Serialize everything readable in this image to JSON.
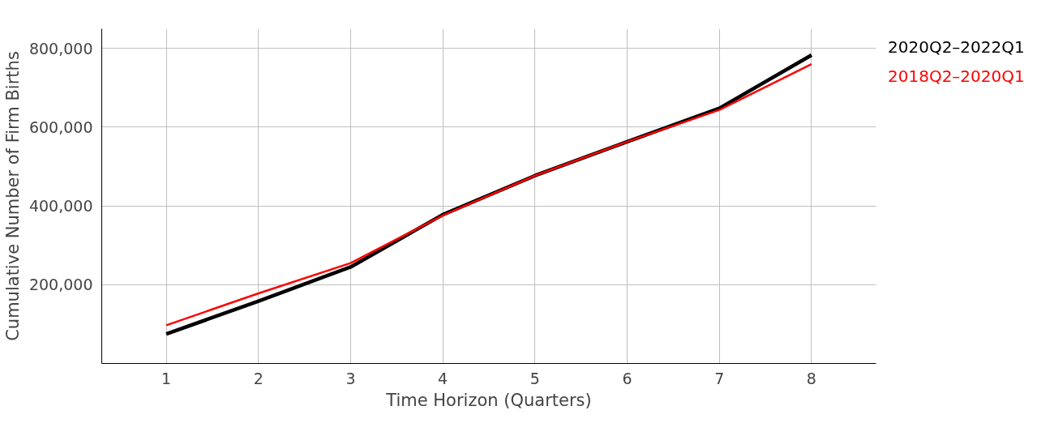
{
  "chart_data": {
    "type": "line",
    "xlabel": "Time Horizon (Quarters)",
    "ylabel": "Cumulative Number of Firm Births",
    "x": [
      1,
      2,
      3,
      4,
      5,
      6,
      7,
      8
    ],
    "series": [
      {
        "name": "2020Q2–2022Q1",
        "color": "#000000",
        "values": [
          75000,
          158000,
          245000,
          378000,
          477000,
          563000,
          648000,
          783000
        ]
      },
      {
        "name": "2018Q2–2020Q1",
        "color": "#ff0000",
        "values": [
          97000,
          178000,
          255000,
          376000,
          477000,
          563000,
          644000,
          760000
        ]
      }
    ],
    "xlim": [
      0.3,
      8.7
    ],
    "ylim": [
      0,
      850000
    ],
    "xticks": [
      1,
      2,
      3,
      4,
      5,
      6,
      7,
      8
    ],
    "yticks": [
      {
        "value": 200000,
        "label": "200,000"
      },
      {
        "value": 400000,
        "label": "400,000"
      },
      {
        "value": 600000,
        "label": "600,000"
      },
      {
        "value": 800000,
        "label": "800,000"
      }
    ],
    "grid": true,
    "legend": "top right",
    "marker": "none",
    "line_style": "solid"
  }
}
